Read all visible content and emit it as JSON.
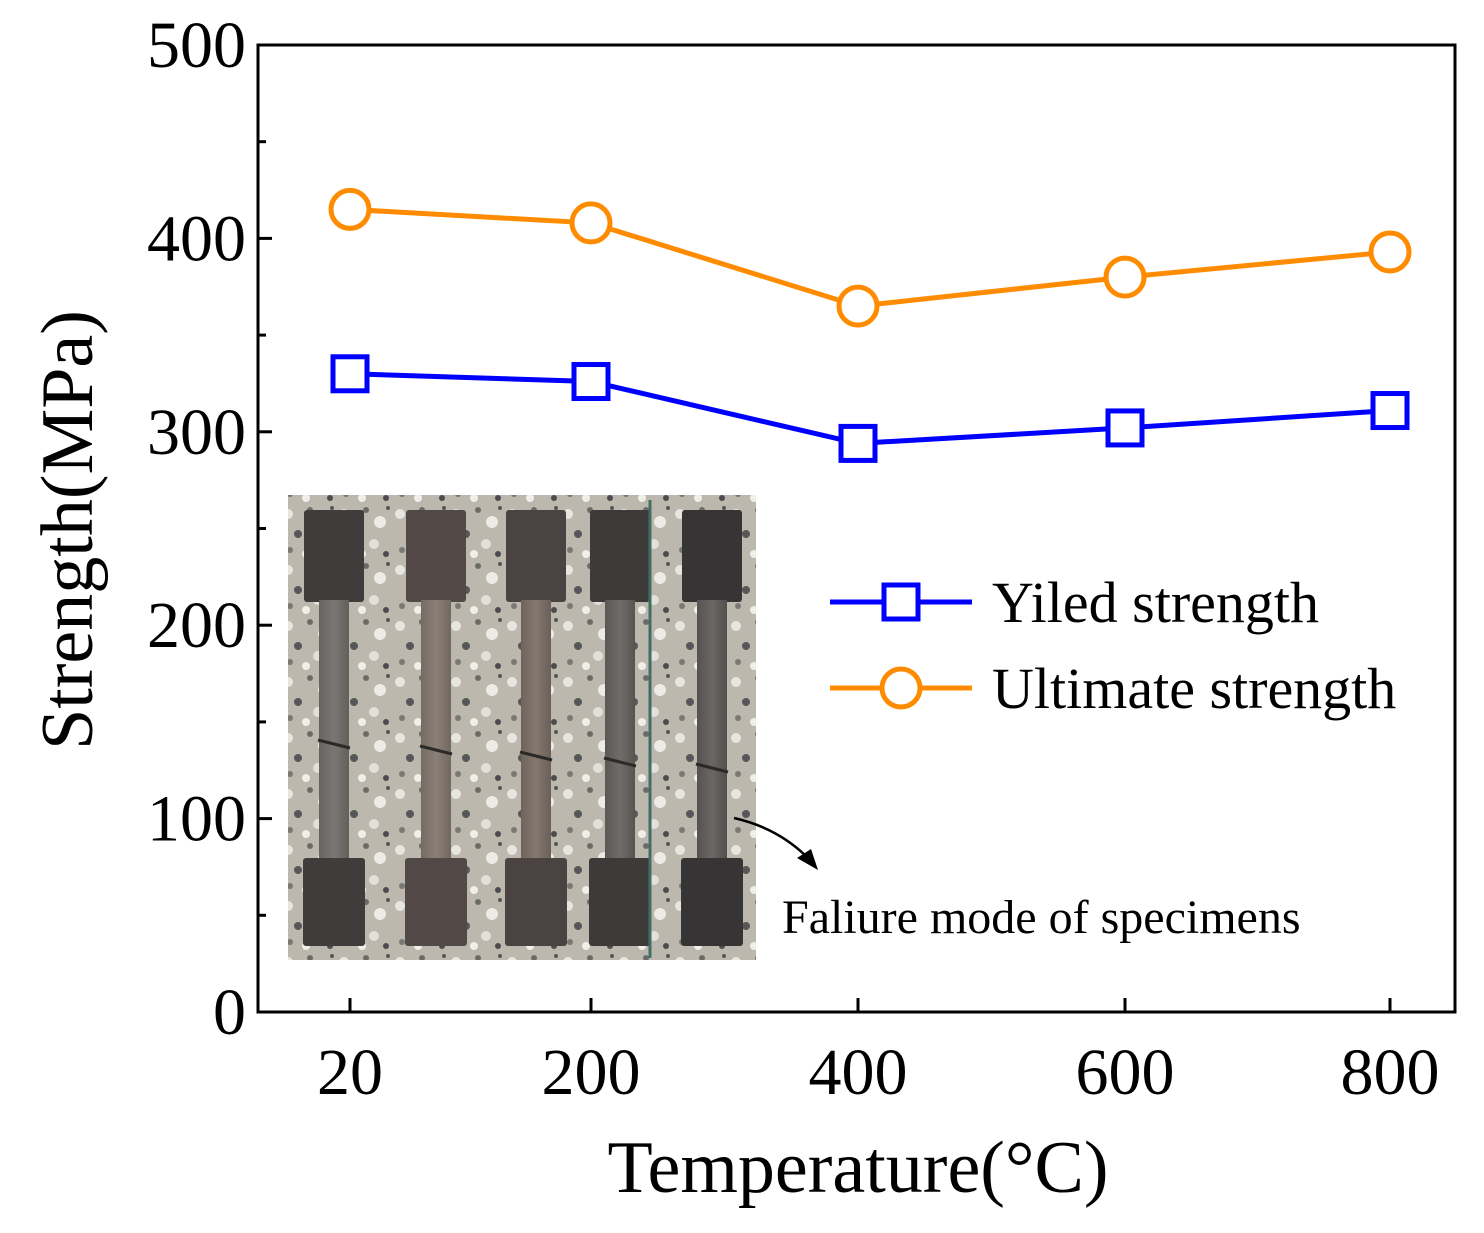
{
  "chart_data": {
    "type": "line",
    "xlabel": "Temperature(°C)",
    "ylabel": "Strength(MPa)",
    "categories": [
      "20",
      "200",
      "400",
      "600",
      "800"
    ],
    "x": [
      20,
      200,
      400,
      600,
      800
    ],
    "ylim": [
      0,
      500
    ],
    "yticks": [
      0,
      100,
      200,
      300,
      400,
      500
    ],
    "grid": false,
    "legend_position": "right",
    "series": [
      {
        "name": "Yiled strength",
        "marker": "square",
        "color": "#0000ff",
        "values": [
          330,
          326,
          294,
          302,
          311
        ]
      },
      {
        "name": "Ultimate strength",
        "marker": "circle",
        "color": "#ff8c00",
        "values": [
          415,
          408,
          365,
          380,
          393
        ]
      }
    ],
    "annotations": [
      {
        "text": "Faliure mode of specimens"
      }
    ]
  }
}
